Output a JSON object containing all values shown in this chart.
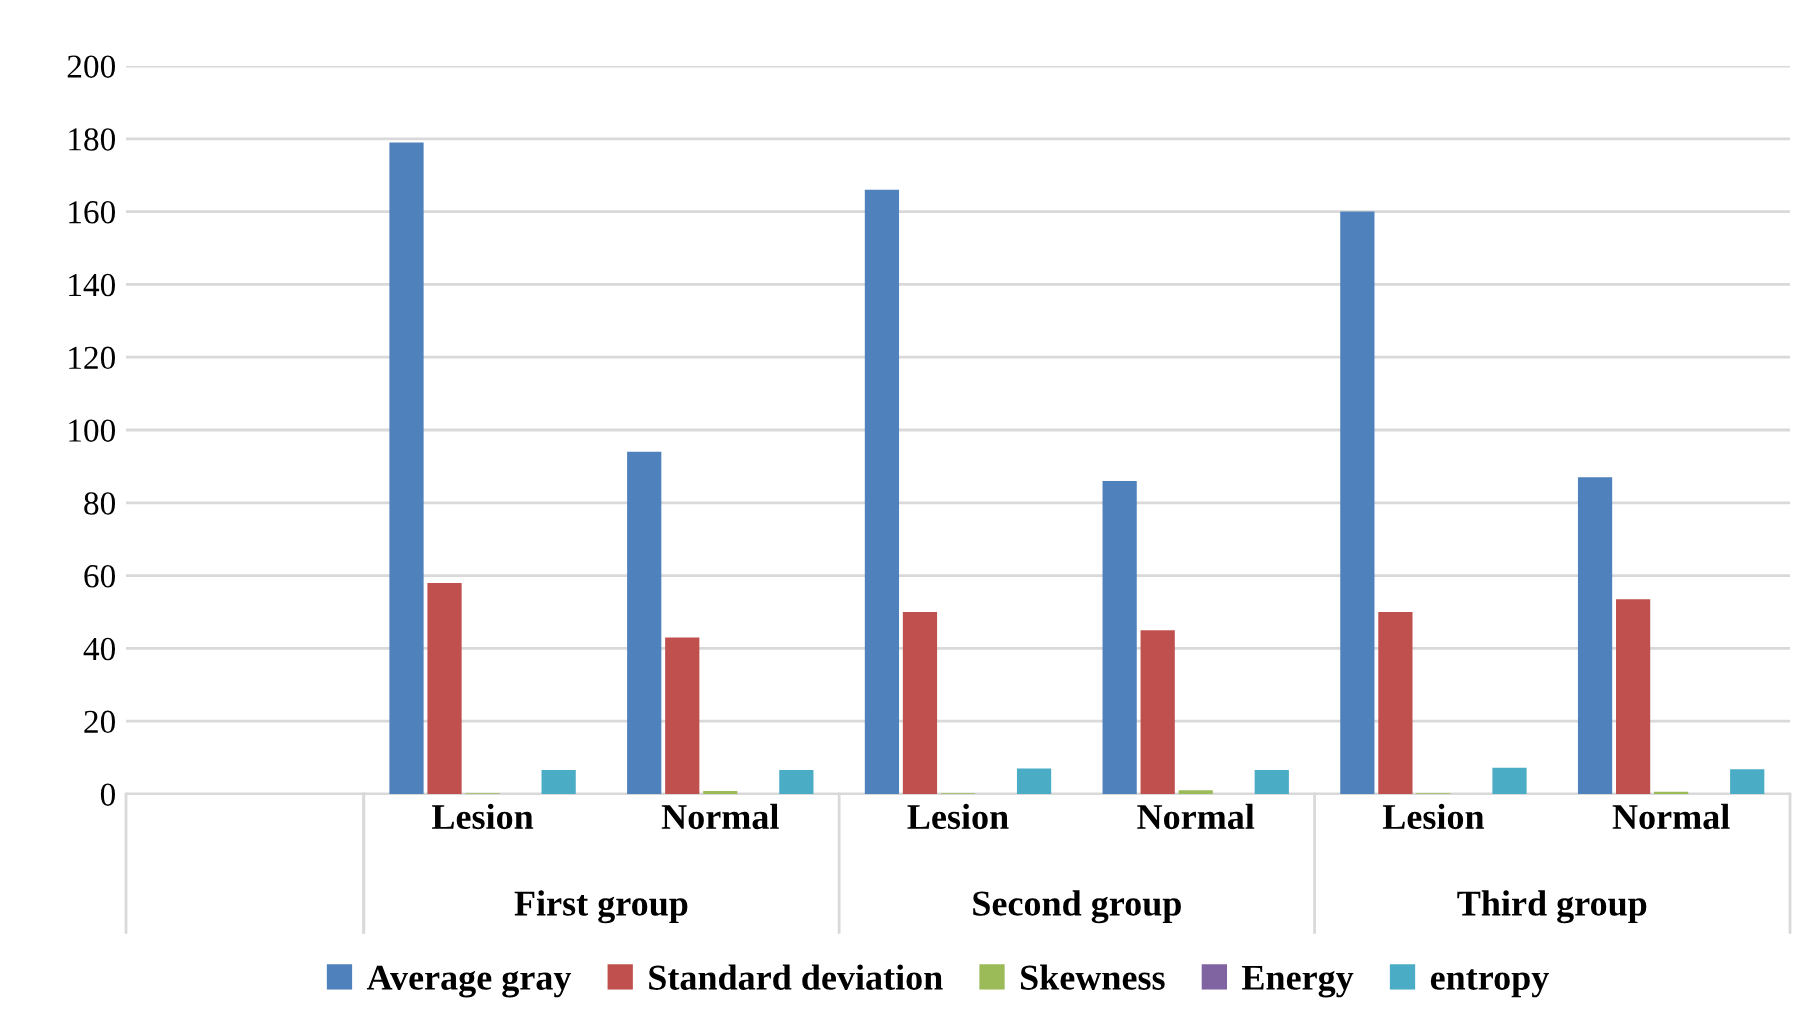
{
  "chart_data": {
    "type": "bar",
    "categories": [
      null,
      "Lesion",
      "Normal",
      "Lesion",
      "Normal",
      "Lesion",
      "Normal"
    ],
    "series": [
      {
        "name": "Average gray",
        "color": "#4f81bd",
        "values": [
          null,
          179,
          94,
          166,
          86,
          160,
          87
        ]
      },
      {
        "name": "Standard deviation",
        "color": "#c0504d",
        "values": [
          null,
          58,
          43,
          50,
          45,
          50,
          53.5
        ]
      },
      {
        "name": "Skewness",
        "color": "#9bbb59",
        "values": [
          null,
          0.2,
          0.8,
          0.2,
          1.0,
          0.2,
          0.6
        ]
      },
      {
        "name": "Energy",
        "color": "#8064a2",
        "values": [
          null,
          0,
          0,
          0,
          0,
          0,
          0
        ]
      },
      {
        "name": "entropy",
        "color": "#4bacc6",
        "values": [
          null,
          6.6,
          6.6,
          7.0,
          6.6,
          7.2,
          6.8
        ]
      }
    ],
    "annotations": [
      "First group",
      "Second group",
      "Third group"
    ],
    "ylim": [
      0,
      200
    ],
    "yticks": [
      0,
      20,
      40,
      60,
      80,
      100,
      120,
      140,
      160,
      180,
      200
    ],
    "grid": "y",
    "legend": "bottom"
  }
}
